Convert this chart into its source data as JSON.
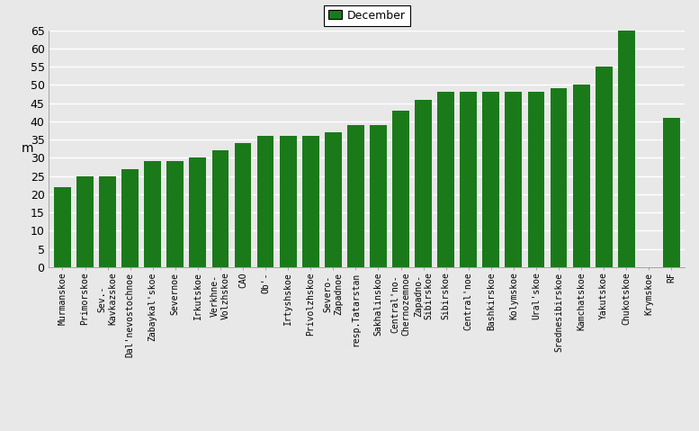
{
  "categories": [
    "Murmanskoe",
    "Primorskoe",
    "Sev.-\nKavkazskoe",
    "Dal'nevostochnoe",
    "Zabaykal'skoe",
    "Severnoe",
    "Irkutskoe",
    "Verkhne-\nVolzhskoe",
    "CAO",
    "Ob'-",
    "Irtyshskoe",
    "Privolzhskoe",
    "Severo-\nZapadnoe",
    "resp.Tatarstan",
    "Sakhalinskoe",
    "Central'no-\nChernozemnoe",
    "Zapadno-\nSibirskoe",
    "Sibirskoe",
    "Central'noe",
    "Bashkirskoe",
    "Kolymskoe",
    "Ural'skoe",
    "Srednesibirskoe",
    "Kamchatskoe",
    "Yakutskoe",
    "Chukotskoe",
    "Krymskoe",
    "RF"
  ],
  "values": [
    22,
    25,
    25,
    27,
    29,
    29,
    30,
    32,
    34,
    36,
    36,
    36,
    37,
    39,
    39,
    43,
    46,
    48,
    48,
    48,
    48,
    48,
    49,
    50,
    55,
    65,
    0,
    41
  ],
  "bar_color": "#1a7a1a",
  "ylabel": "m",
  "ylim": [
    0,
    65
  ],
  "yticks": [
    0,
    5,
    10,
    15,
    20,
    25,
    30,
    35,
    40,
    45,
    50,
    55,
    60,
    65
  ],
  "legend_label": "December",
  "plot_bg_color": "#e8e8e8",
  "fig_bg_color": "#e8e8e8",
  "grid_color": "#ffffff"
}
